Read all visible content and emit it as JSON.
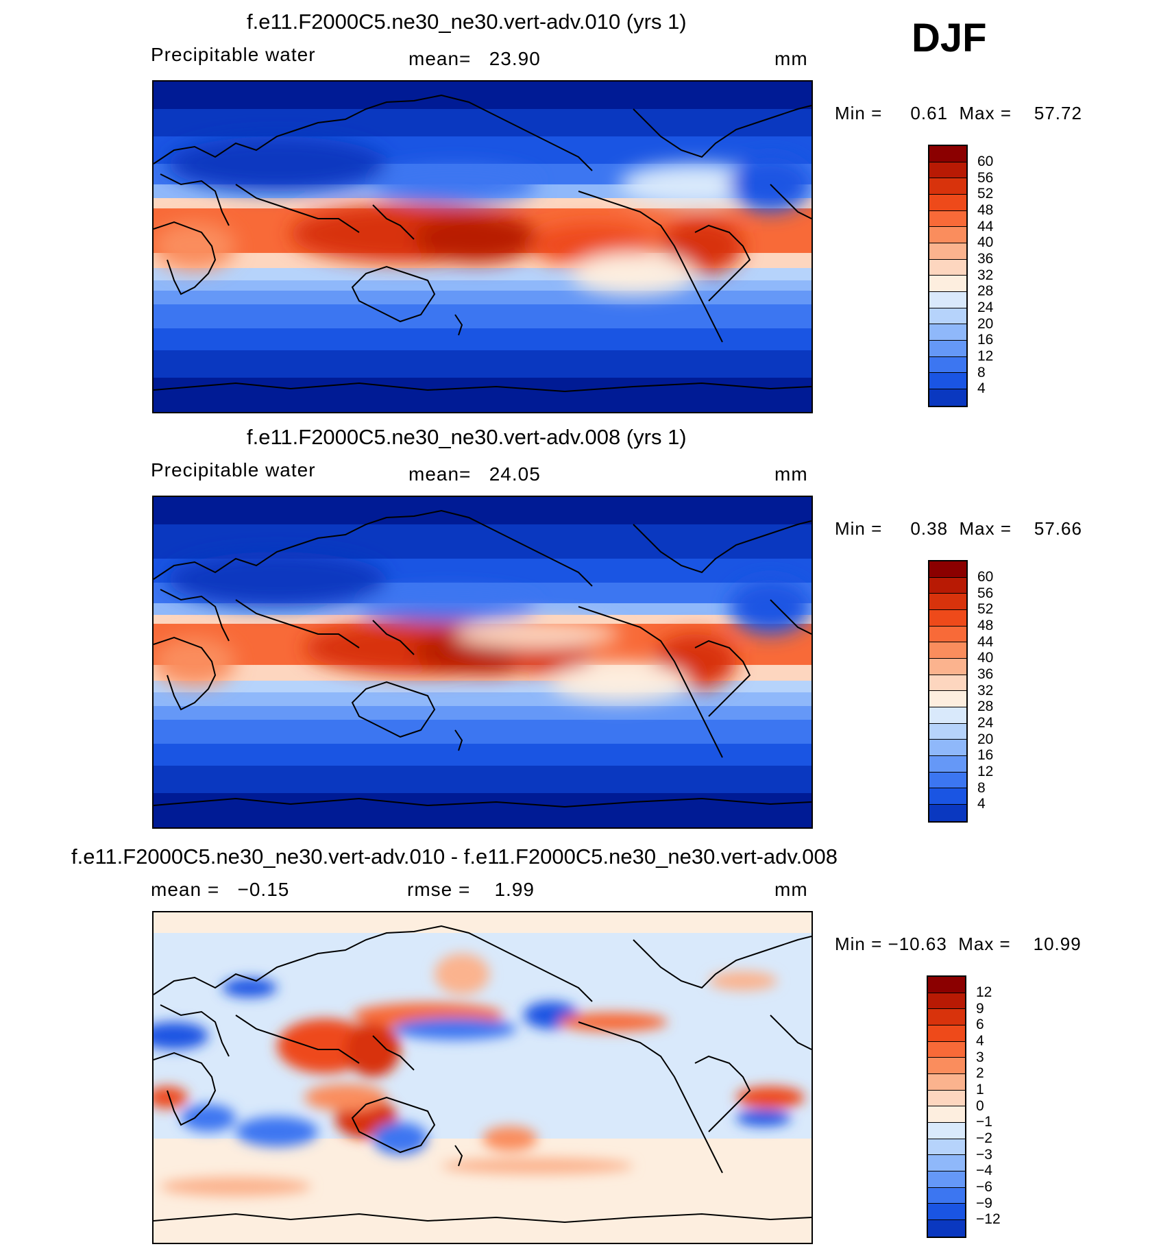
{
  "season_label": "DJF",
  "panels": [
    {
      "title": "f.e11.F2000C5.ne30_ne30.vert-adv.010 (yrs 1)",
      "left_label": "Precipitable water",
      "center_label": "mean=   23.90",
      "units": "mm",
      "minmax": "Min =     0.61  Max =    57.72",
      "colorbar": {
        "labels": [
          "60",
          "56",
          "52",
          "48",
          "44",
          "40",
          "36",
          "32",
          "28",
          "24",
          "20",
          "16",
          "12",
          "8",
          "4"
        ],
        "colors": [
          "#8b0000",
          "#b81a04",
          "#d8330c",
          "#ee4a1a",
          "#f86a38",
          "#fa8d5d",
          "#fbb38e",
          "#fdd6bf",
          "#fdeedf",
          "#d9e9fb",
          "#b6d3fb",
          "#8fb8fa",
          "#6598f7",
          "#3c76f1",
          "#1a55e3",
          "#0a38c0",
          "#001b95"
        ]
      }
    },
    {
      "title": "f.e11.F2000C5.ne30_ne30.vert-adv.008 (yrs 1)",
      "left_label": "Precipitable water",
      "center_label": "mean=   24.05",
      "units": "mm",
      "minmax": "Min =     0.38  Max =    57.66",
      "colorbar": {
        "labels": [
          "60",
          "56",
          "52",
          "48",
          "44",
          "40",
          "36",
          "32",
          "28",
          "24",
          "20",
          "16",
          "12",
          "8",
          "4"
        ],
        "colors": [
          "#8b0000",
          "#b81a04",
          "#d8330c",
          "#ee4a1a",
          "#f86a38",
          "#fa8d5d",
          "#fbb38e",
          "#fdd6bf",
          "#fdeedf",
          "#d9e9fb",
          "#b6d3fb",
          "#8fb8fa",
          "#6598f7",
          "#3c76f1",
          "#1a55e3",
          "#0a38c0",
          "#001b95"
        ]
      }
    },
    {
      "title": "f.e11.F2000C5.ne30_ne30.vert-adv.010 - f.e11.F2000C5.ne30_ne30.vert-adv.008",
      "left_label": "mean =   −0.15",
      "center_label": "rmse =    1.99",
      "units": "mm",
      "minmax": "Min = −10.63  Max =    10.99",
      "colorbar": {
        "labels": [
          "12",
          "9",
          "6",
          "4",
          "3",
          "2",
          "1",
          "0",
          "−1",
          "−2",
          "−3",
          "−4",
          "−6",
          "−9",
          "−12"
        ],
        "colors": [
          "#8b0000",
          "#b81a04",
          "#d8330c",
          "#ee4a1a",
          "#f86a38",
          "#fa8d5d",
          "#fbb38e",
          "#fdd6bf",
          "#fdeedf",
          "#d9e9fb",
          "#b6d3fb",
          "#8fb8fa",
          "#6598f7",
          "#3c76f1",
          "#1a55e3",
          "#0a38c0",
          "#001b95"
        ]
      }
    }
  ]
}
